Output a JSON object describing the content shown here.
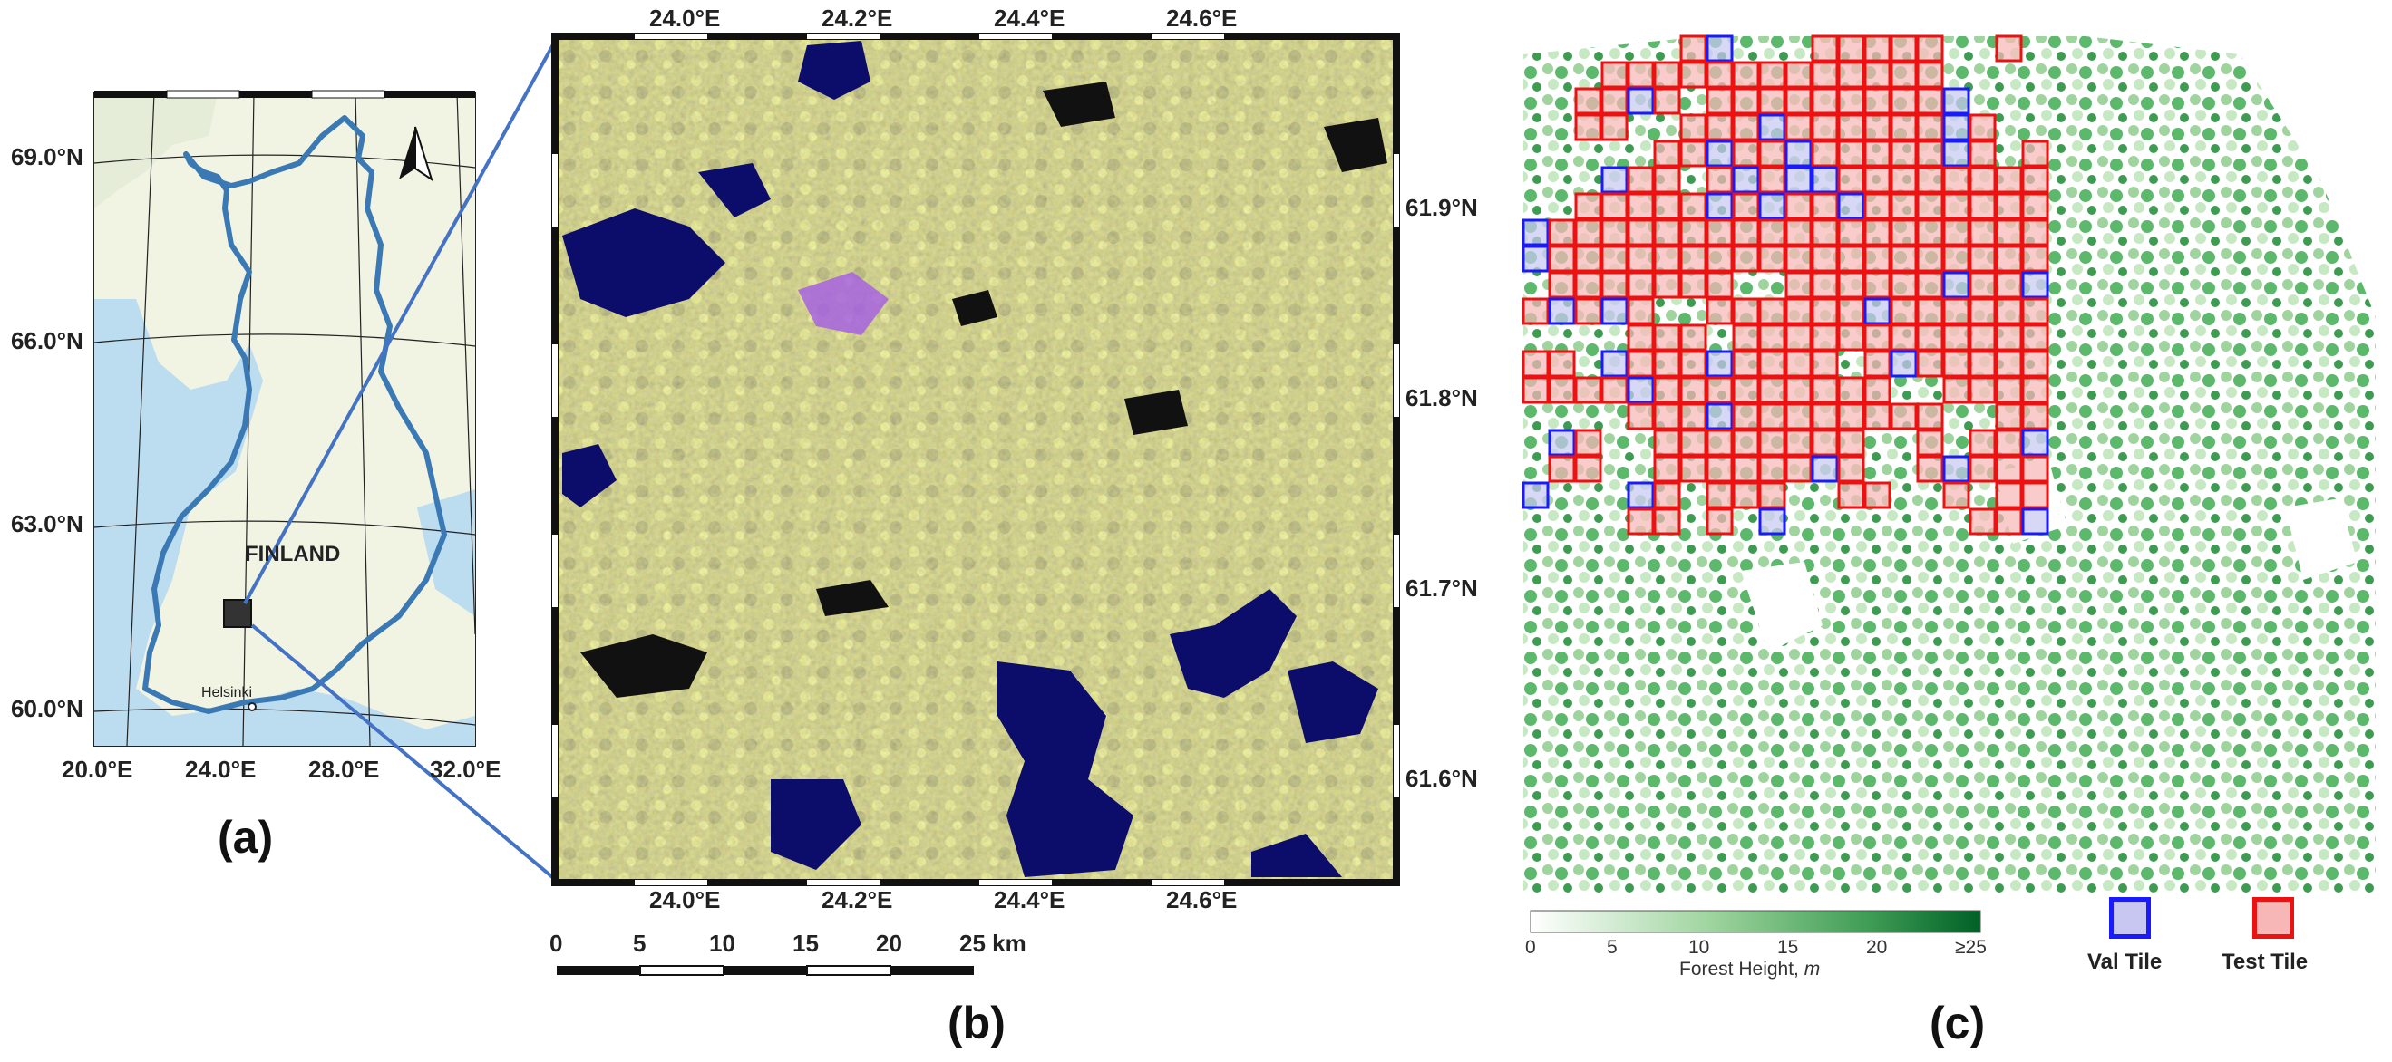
{
  "panels": {
    "a": "(a)",
    "b": "(b)",
    "c": "(c)"
  },
  "panel_a": {
    "country_label": "FINLAND",
    "city_label": "Helsinki",
    "lat_labels": [
      "69.0°N",
      "66.0°N",
      "63.0°N",
      "60.0°N"
    ],
    "lon_labels": [
      "20.0°E",
      "24.0°E",
      "28.0°E",
      "32.0°E"
    ],
    "north_arrow": "north-arrow-icon"
  },
  "panel_b": {
    "top_lon_labels": [
      "24.0°E",
      "24.2°E",
      "24.4°E",
      "24.6°E"
    ],
    "bottom_lon_labels": [
      "24.0°E",
      "24.2°E",
      "24.4°E",
      "24.6°E"
    ],
    "lat_labels": [
      "61.9°N",
      "61.8°N",
      "61.7°N",
      "61.6°N"
    ],
    "scale_bar": {
      "ticks": [
        "0",
        "5",
        "10",
        "15",
        "20",
        "25 km"
      ]
    }
  },
  "panel_c": {
    "colorbar": {
      "ticks": [
        "0",
        "5",
        "10",
        "15",
        "20",
        "≥25"
      ],
      "title": "Forest Height, ",
      "unit": "m",
      "range": [
        0,
        25
      ],
      "colors": [
        "#ffffff",
        "#006127"
      ]
    },
    "legend": [
      {
        "label": "Val Tile",
        "color": "#1a1aff"
      },
      {
        "label": "Test Tile",
        "color": "#ee1111"
      }
    ]
  },
  "colors": {
    "land": "#eef0dc",
    "sea": "#b8dbf0",
    "border": "#3a79b4",
    "leader": "#4472c4",
    "val": "#1a1aff",
    "test": "#ee1111",
    "test_fill": "#f7b7b7",
    "val_fill": "#c7c7f2"
  }
}
